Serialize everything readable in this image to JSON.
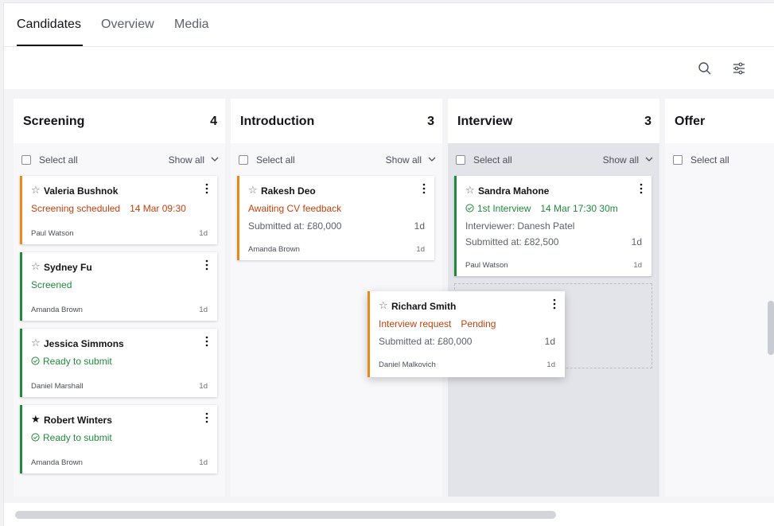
{
  "tabs": [
    {
      "label": "Candidates"
    },
    {
      "label": "Overview"
    },
    {
      "label": "Media"
    }
  ],
  "toolbar": {
    "search_icon": "search-icon",
    "filter_icon": "sliders-icon"
  },
  "columns": [
    {
      "title": "Screening",
      "count": "4",
      "select_all": "Select all",
      "show_all": "Show all",
      "cards": [
        {
          "name": "Valeria Bushnok",
          "status": "Screening scheduled",
          "status_extra": "14 Mar 09:30",
          "owner": "Paul Watson",
          "age": "1d",
          "starred": false
        },
        {
          "name": "Sydney Fu",
          "status": "Screened",
          "owner": "Amanda Brown",
          "age": "1d",
          "starred": false
        },
        {
          "name": "Jessica Simmons",
          "status": "Ready to submit",
          "owner": "Daniel Marshall",
          "age": "1d",
          "starred": false
        },
        {
          "name": "Robert Winters",
          "status": "Ready to submit",
          "owner": "Amanda Brown",
          "age": "1d",
          "starred": true
        }
      ]
    },
    {
      "title": "Introduction",
      "count": "3",
      "select_all": "Select all",
      "show_all": "Show all",
      "cards": [
        {
          "name": "Rakesh Deo",
          "status": "Awaiting CV feedback",
          "detail": "Submitted at: £80,000",
          "days": "1d",
          "owner": "Amanda Brown",
          "age": "1d",
          "starred": false
        }
      ]
    },
    {
      "title": "Interview",
      "count": "3",
      "select_all": "Select all",
      "show_all": "Show all",
      "cards": [
        {
          "name": "Sandra Mahone",
          "status": "1st Interview",
          "status_extra": "14 Mar 17:30 30m",
          "detail1": "Interviewer: Danesh Patel",
          "detail": "Submitted at: £82,500",
          "days": "1d",
          "owner": "Paul Watson",
          "age": "1d",
          "starred": false
        }
      ]
    },
    {
      "title": "Offer",
      "select_all": "Select all"
    }
  ],
  "dragging_card": {
    "name": "Richard Smith",
    "status": "Interview request",
    "status_extra": "Pending",
    "detail": "Submitted at: £80,000",
    "days": "1d",
    "owner": "Daniel Malkovich",
    "age": "1d",
    "starred": false
  },
  "colors": {
    "orange_status": "#c6410e",
    "green_status": "#1f8a3d",
    "orange_border": "#e88a1a",
    "green_border": "#1f8a3d"
  }
}
